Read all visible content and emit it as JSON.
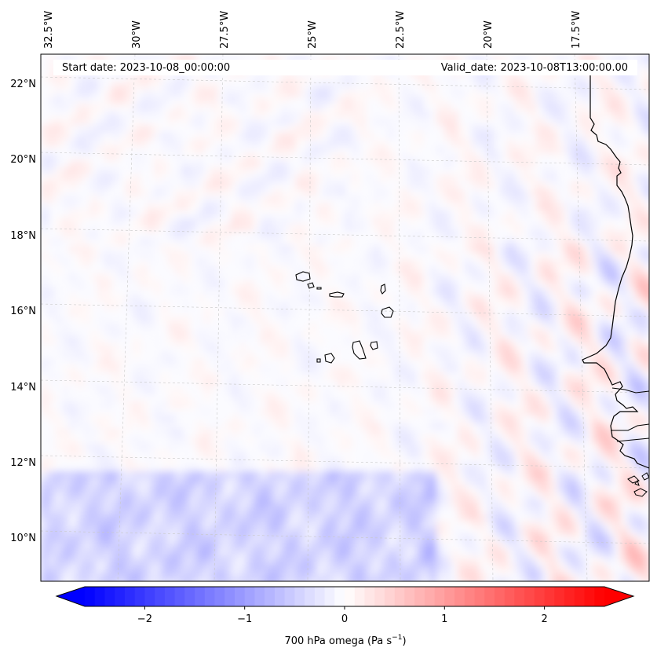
{
  "map": {
    "start_date_text": "Start date: 2023-10-08_00:00:00",
    "valid_date_text": "Valid_date: 2023-10-08T13:00:00.00",
    "lon_labels": [
      "32.5°W",
      "30°W",
      "27.5°W",
      "25°W",
      "22.5°W",
      "20°W",
      "17.5°W"
    ],
    "lat_labels": [
      "22°N",
      "20°N",
      "18°N",
      "16°N",
      "14°N",
      "12°N",
      "10°N"
    ],
    "field": "700 hPa omega",
    "colormap": "bwr",
    "value_range": [
      -2.6,
      2.6
    ],
    "gridlines": true
  },
  "colorbar": {
    "label": "700 hPa omega (Pa s",
    "label_sup": "−1",
    "label_close": ")",
    "ticks": [
      {
        "value": -2,
        "label": "−2"
      },
      {
        "value": -1,
        "label": "−1"
      },
      {
        "value": 0,
        "label": "0"
      },
      {
        "value": 1,
        "label": "1"
      },
      {
        "value": 2,
        "label": "2"
      }
    ],
    "extend": "both",
    "levels": 52
  },
  "colors": {
    "low": "#0000ff",
    "mid": "#ffffff",
    "high": "#ff0000",
    "coastline": "#000000",
    "grid": "#c8c8c8"
  }
}
